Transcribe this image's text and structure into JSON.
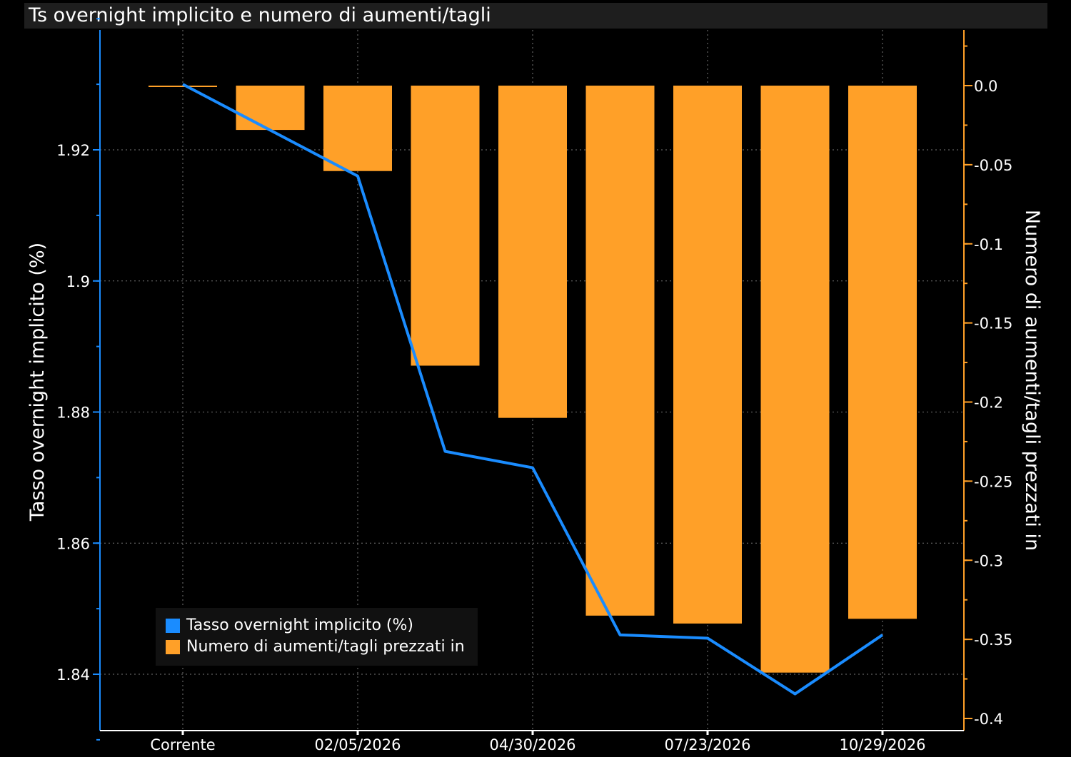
{
  "title": "Ts overnight implicito e numero di aumenti/tagli",
  "chart_data": {
    "type": "bar+line",
    "categories": [
      "Corrente",
      "",
      "02/05/2026",
      "",
      "04/30/2026",
      "",
      "07/23/2026",
      "",
      "10/29/2026"
    ],
    "x_tick_labels": [
      "Corrente",
      "02/05/2026",
      "04/30/2026",
      "07/23/2026",
      "10/29/2026"
    ],
    "left_axis": {
      "label": "Tasso overnight implicito (%)",
      "range": [
        1.828,
        1.947
      ],
      "ticks": [
        1.92,
        1.9,
        1.88,
        1.86,
        1.84
      ],
      "tick_labels": [
        "1.92",
        "1.9",
        "1.88",
        "1.86",
        "1.84"
      ]
    },
    "right_axis": {
      "label": "Numero di aumenti/tagli prezzati in",
      "range": [
        -0.405,
        0.037
      ],
      "ticks": [
        0.0,
        -0.05,
        -0.1,
        -0.15,
        -0.2,
        -0.25,
        -0.3,
        -0.35,
        -0.4
      ],
      "tick_labels": [
        "0.0",
        "-0.05",
        "-0.1",
        "-0.15",
        "-0.2",
        "-0.25",
        "-0.3",
        "-0.35",
        "-0.4"
      ]
    },
    "series": [
      {
        "name": "Tasso overnight implicito (%)",
        "type": "line",
        "axis": "left",
        "color": "#1a8cff",
        "values": [
          1.93,
          1.923,
          1.916,
          1.874,
          1.8715,
          1.846,
          1.8455,
          1.837,
          1.846
        ]
      },
      {
        "name": "Numero di aumenti/tagli prezzati in",
        "type": "bar",
        "axis": "right",
        "color": "#ffa028",
        "values": [
          0.0,
          -0.028,
          -0.054,
          -0.177,
          -0.21,
          -0.335,
          -0.34,
          -0.371,
          -0.337
        ]
      }
    ],
    "grid": true,
    "legend_position": "bottom-left"
  }
}
